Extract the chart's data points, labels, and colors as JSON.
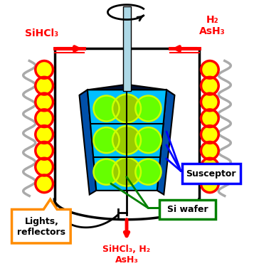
{
  "bg_color": "#ffffff",
  "susceptor_top_color": "#001133",
  "susceptor_body_color": "#00bfff",
  "susceptor_side_color": "#0050aa",
  "wafer_color": "#66ff00",
  "wafer_outline_color": "#ccff00",
  "shaft_color": "#add8e6",
  "lamp_fill": "#ffff00",
  "lamp_outline": "#ff0000",
  "coil_color": "#aaaaaa",
  "arrow_color": "#ff0000",
  "label_sihcl3": "SiHCl₃",
  "label_h2ash3": "H₂\nAsH₃",
  "label_bottom": "SiHCl₃, H₂\nAsH₃",
  "label_susceptor": "Susceptor",
  "label_siwafer": "Si wafer",
  "label_lights": "Lights,\nreflectors",
  "box_susceptor_color": "#0000ff",
  "box_siwafer_color": "#008000",
  "box_lights_color": "#ff8c00",
  "chamber_wall_color": "#000000",
  "susceptor_wafer_dark": "#99cc00"
}
